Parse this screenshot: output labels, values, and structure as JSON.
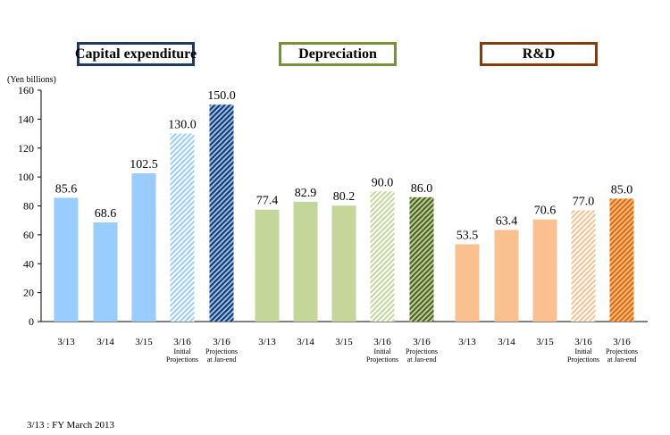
{
  "chart_data": {
    "type": "bar",
    "unit_label": "(Yen billions)",
    "ylim": [
      0,
      160
    ],
    "yticks": [
      0,
      20,
      40,
      60,
      80,
      100,
      120,
      140,
      160
    ],
    "groups": [
      {
        "title": "Capital expenditure",
        "color": "#99ccff",
        "dark_color": "#1f3864",
        "border_color": "#1f3864",
        "bars": [
          {
            "label": "3/13",
            "sublabel": "",
            "value": 85.6,
            "style": "solid"
          },
          {
            "label": "3/14",
            "sublabel": "",
            "value": 68.6,
            "style": "solid"
          },
          {
            "label": "3/15",
            "sublabel": "",
            "value": 102.5,
            "style": "solid"
          },
          {
            "label": "3/16",
            "sublabel": "Initial Projections",
            "value": 130.0,
            "style": "hatch-light"
          },
          {
            "label": "3/16",
            "sublabel": "Projections at Jan-end",
            "value": 150.0,
            "style": "hatch-dark"
          }
        ]
      },
      {
        "title": "Depreciation",
        "color": "#c4d79b",
        "dark_color": "#4f6228",
        "border_color": "#76923c",
        "bars": [
          {
            "label": "3/13",
            "sublabel": "",
            "value": 77.4,
            "style": "solid"
          },
          {
            "label": "3/14",
            "sublabel": "",
            "value": 82.9,
            "style": "solid"
          },
          {
            "label": "3/15",
            "sublabel": "",
            "value": 80.2,
            "style": "solid"
          },
          {
            "label": "3/16",
            "sublabel": "Initial Projections",
            "value": 90.0,
            "style": "hatch-light"
          },
          {
            "label": "3/16",
            "sublabel": "Projections at Jan-end",
            "value": 86.0,
            "style": "hatch-dark"
          }
        ]
      },
      {
        "title": "R&D",
        "color": "#fac090",
        "dark_color": "#e36c0a",
        "border_color": "#843c0c",
        "bars": [
          {
            "label": "3/13",
            "sublabel": "",
            "value": 53.5,
            "style": "solid"
          },
          {
            "label": "3/14",
            "sublabel": "",
            "value": 63.4,
            "style": "solid"
          },
          {
            "label": "3/15",
            "sublabel": "",
            "value": 70.6,
            "style": "solid"
          },
          {
            "label": "3/16",
            "sublabel": "Initial Projections",
            "value": 77.0,
            "style": "hatch-light"
          },
          {
            "label": "3/16",
            "sublabel": "Projections at Jan-end",
            "value": 85.0,
            "style": "hatch-dark"
          }
        ]
      }
    ],
    "footnote": "3/13 : FY March 2013"
  }
}
